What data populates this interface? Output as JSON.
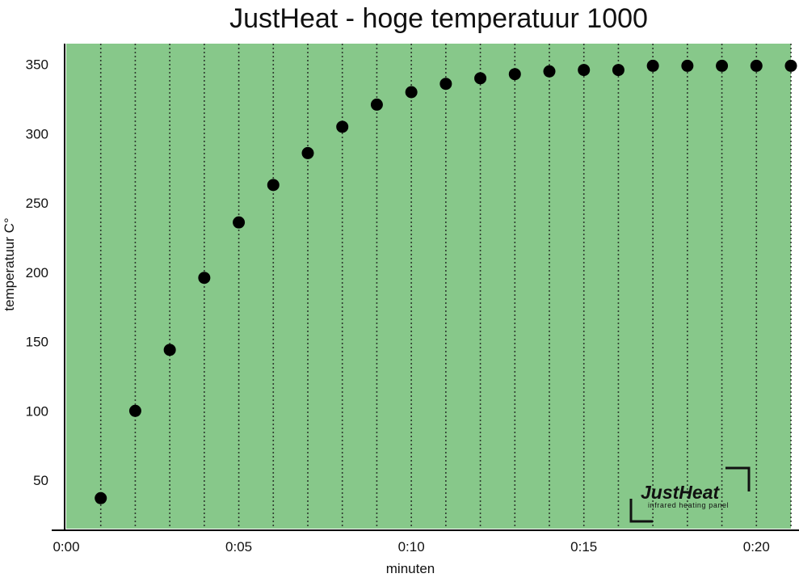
{
  "colors": {
    "plot_background": "#87c88a",
    "marker": "#000000",
    "grid": "#2f3b2f",
    "axis": "#000000"
  },
  "logo": {
    "name": "JustHeat",
    "tagline": "infrared heating panel"
  },
  "chart_data": {
    "type": "scatter",
    "title": "JustHeat - hoge temperatuur 1000",
    "xlabel": "minuten",
    "ylabel": "temperatuur C°",
    "x_unit": "minutes",
    "xlim": [
      0,
      21
    ],
    "ylim": [
      15,
      365
    ],
    "x_ticks": [
      0,
      5,
      10,
      15,
      20
    ],
    "x_tick_labels": [
      "0:00",
      "0:05",
      "0:10",
      "0:15",
      "0:20"
    ],
    "y_ticks": [
      50,
      100,
      150,
      200,
      250,
      300,
      350
    ],
    "y_tick_labels": [
      "50",
      "100",
      "150",
      "200",
      "250",
      "300",
      "350"
    ],
    "grid": {
      "vertical": true,
      "horizontal": false,
      "style": "dotted",
      "step_minutes": 1
    },
    "legend": "none",
    "marker": "filled-circle",
    "series": [
      {
        "x": [
          1,
          2,
          3,
          4,
          5,
          6,
          7,
          8,
          9,
          10,
          11,
          12,
          13,
          14,
          15,
          16,
          17,
          18,
          19,
          20,
          21
        ],
        "y": [
          37,
          100,
          144,
          196,
          236,
          263,
          286,
          305,
          321,
          330,
          336,
          340,
          343,
          345,
          346,
          346,
          349,
          349,
          349,
          349,
          349
        ]
      }
    ]
  }
}
